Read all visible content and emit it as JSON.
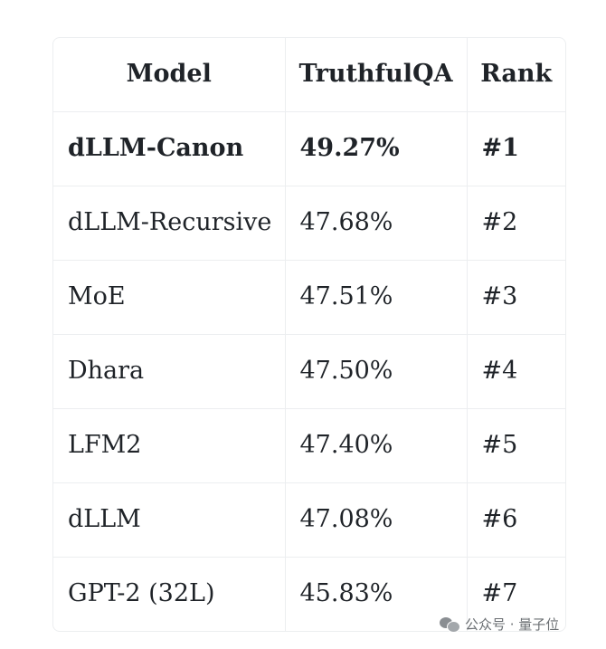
{
  "table": {
    "headers": [
      "Model",
      "TruthfulQA",
      "Rank"
    ],
    "rows": [
      {
        "model": "dLLM-Canon",
        "truthfulqa": "49.27%",
        "rank": "#1"
      },
      {
        "model": "dLLM-Recursive",
        "truthfulqa": "47.68%",
        "rank": "#2"
      },
      {
        "model": "MoE",
        "truthfulqa": "47.51%",
        "rank": "#3"
      },
      {
        "model": "Dhara",
        "truthfulqa": "47.50%",
        "rank": "#4"
      },
      {
        "model": "LFM2",
        "truthfulqa": "47.40%",
        "rank": "#5"
      },
      {
        "model": "dLLM",
        "truthfulqa": "47.08%",
        "rank": "#6"
      },
      {
        "model": "GPT-2 (32L)",
        "truthfulqa": "45.83%",
        "rank": "#7"
      }
    ]
  },
  "watermark": {
    "icon": "wechat-icon",
    "text": "公众号 · 量子位"
  }
}
